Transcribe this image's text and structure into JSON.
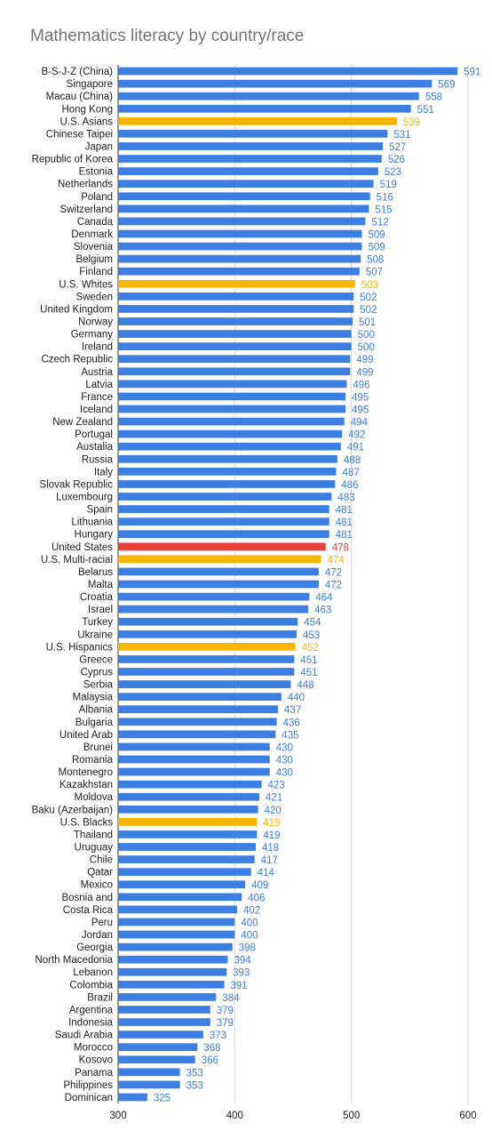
{
  "chart_data": {
    "type": "bar",
    "orientation": "horizontal",
    "title": "Mathematics literacy by country/race",
    "xlabel": "",
    "ylabel": "",
    "xlim": [
      300,
      600
    ],
    "xticks": [
      "300",
      "400",
      "500",
      "600"
    ],
    "grid": true,
    "legend": "none",
    "colors": {
      "default": "#3d7ee3",
      "us_group": "#f7b500",
      "us_overall": "#e8413a"
    },
    "categories": [
      "B-S-J-Z (China)",
      "Singapore",
      "Macau (China)",
      "Hong Kong",
      "U.S. Asians",
      "Chinese Taipei",
      "Japan",
      "Republic of Korea",
      "Estonia",
      "Netherlands",
      "Poland",
      "Switzerland",
      "Canada",
      "Denmark",
      "Slovenia",
      "Belgium",
      "Finland",
      "U.S. Whites",
      "Sweden",
      "United Kingdom",
      "Norway",
      "Germany",
      "Ireland",
      "Czech Republic",
      "Austria",
      "Latvia",
      "France",
      "Iceland",
      "New Zealand",
      "Portugal",
      "Austalia",
      "Russia",
      "Italy",
      "Slovak Republic",
      "Luxembourg",
      "Spain",
      "Lithuania",
      "Hungary",
      "United States",
      "U.S. Multi-racial",
      "Belarus",
      "Malta",
      "Croatia",
      "Israel",
      "Turkey",
      "Ukraine",
      "U.S. Hispanics",
      "Greece",
      "Cyprus",
      "Serbia",
      "Malaysia",
      "Albania",
      "Bulgaria",
      "United Arab",
      "Brunei",
      "Romania",
      "Montenegro",
      "Kazakhstan",
      "Moldova",
      "Baku (Azerbaijan)",
      "U.S. Blacks",
      "Thailand",
      "Uruguay",
      "Chile",
      "Qatar",
      "Mexico",
      "Bosnia and",
      "Costa Rica",
      "Peru",
      "Jordan",
      "Georgia",
      "North Macedonia",
      "Lebanon",
      "Colombia",
      "Brazil",
      "Argentina",
      "Indonesia",
      "Saudi Arabia",
      "Morocco",
      "Kosovo",
      "Panama",
      "Philippines",
      "Dominican"
    ],
    "values": [
      591,
      569,
      558,
      551,
      539,
      531,
      527,
      526,
      523,
      519,
      516,
      515,
      512,
      509,
      509,
      508,
      507,
      503,
      502,
      502,
      501,
      500,
      500,
      499,
      499,
      496,
      495,
      495,
      494,
      492,
      491,
      488,
      487,
      486,
      483,
      481,
      481,
      481,
      478,
      474,
      472,
      472,
      464,
      463,
      454,
      453,
      452,
      451,
      451,
      448,
      440,
      437,
      436,
      435,
      430,
      430,
      430,
      423,
      421,
      420,
      419,
      419,
      418,
      417,
      414,
      409,
      406,
      402,
      400,
      400,
      398,
      394,
      393,
      391,
      384,
      379,
      379,
      373,
      368,
      366,
      353,
      353,
      325
    ],
    "color_group": [
      "default",
      "default",
      "default",
      "default",
      "us_group",
      "default",
      "default",
      "default",
      "default",
      "default",
      "default",
      "default",
      "default",
      "default",
      "default",
      "default",
      "default",
      "us_group",
      "default",
      "default",
      "default",
      "default",
      "default",
      "default",
      "default",
      "default",
      "default",
      "default",
      "default",
      "default",
      "default",
      "default",
      "default",
      "default",
      "default",
      "default",
      "default",
      "default",
      "us_overall",
      "us_group",
      "default",
      "default",
      "default",
      "default",
      "default",
      "default",
      "us_group",
      "default",
      "default",
      "default",
      "default",
      "default",
      "default",
      "default",
      "default",
      "default",
      "default",
      "default",
      "default",
      "default",
      "us_group",
      "default",
      "default",
      "default",
      "default",
      "default",
      "default",
      "default",
      "default",
      "default",
      "default",
      "default",
      "default",
      "default",
      "default",
      "default",
      "default",
      "default",
      "default",
      "default",
      "default",
      "default",
      "default"
    ]
  }
}
